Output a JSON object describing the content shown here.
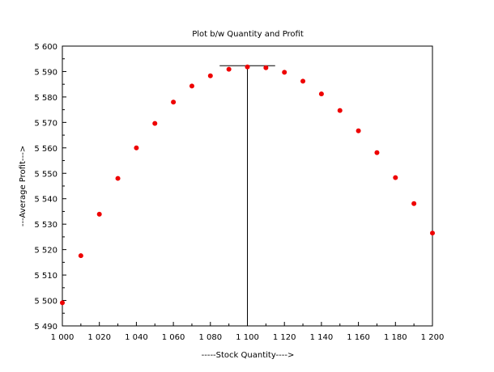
{
  "chart_data": {
    "type": "scatter",
    "title": "Plot b/w Quantity and Profit",
    "xlabel": "-----Stock Quantity---->",
    "ylabel": "---Average Profit--->",
    "xlim": [
      1000,
      1200
    ],
    "ylim": [
      5490,
      5600
    ],
    "grid": false,
    "x_ticks": [
      1000,
      1020,
      1040,
      1060,
      1080,
      1100,
      1120,
      1140,
      1160,
      1180,
      1200
    ],
    "x_tick_labels": [
      "1 000",
      "1 020",
      "1 040",
      "1 060",
      "1 080",
      "1 100",
      "1 120",
      "1 140",
      "1 160",
      "1 180",
      "1 200"
    ],
    "y_ticks": [
      5490,
      5500,
      5510,
      5520,
      5530,
      5540,
      5550,
      5560,
      5570,
      5580,
      5590,
      5600
    ],
    "y_tick_labels": [
      "5 490",
      "5 500",
      "5 510",
      "5 520",
      "5 530",
      "5 540",
      "5 550",
      "5 560",
      "5 570",
      "5 580",
      "5 590",
      "5 600"
    ],
    "series": [
      {
        "color": "#ee0000",
        "marker": "circle",
        "x": [
          1000,
          1010,
          1020,
          1030,
          1040,
          1050,
          1060,
          1070,
          1080,
          1090,
          1100,
          1110,
          1120,
          1130,
          1140,
          1150,
          1160,
          1170,
          1180,
          1190,
          1200
        ],
        "y": [
          5499.1,
          5517.6,
          5533.9,
          5548.0,
          5560.0,
          5569.6,
          5578.0,
          5584.3,
          5588.3,
          5590.9,
          5591.8,
          5591.5,
          5589.7,
          5586.2,
          5581.2,
          5574.7,
          5566.7,
          5558.1,
          5548.3,
          5538.1,
          5526.5
        ]
      }
    ],
    "annotation": {
      "type": "optimum-marker",
      "x": 1100,
      "y": 5592.3,
      "x_from": 1085,
      "x_to": 1115,
      "y_bottom": 5490,
      "color": "#000000"
    }
  }
}
